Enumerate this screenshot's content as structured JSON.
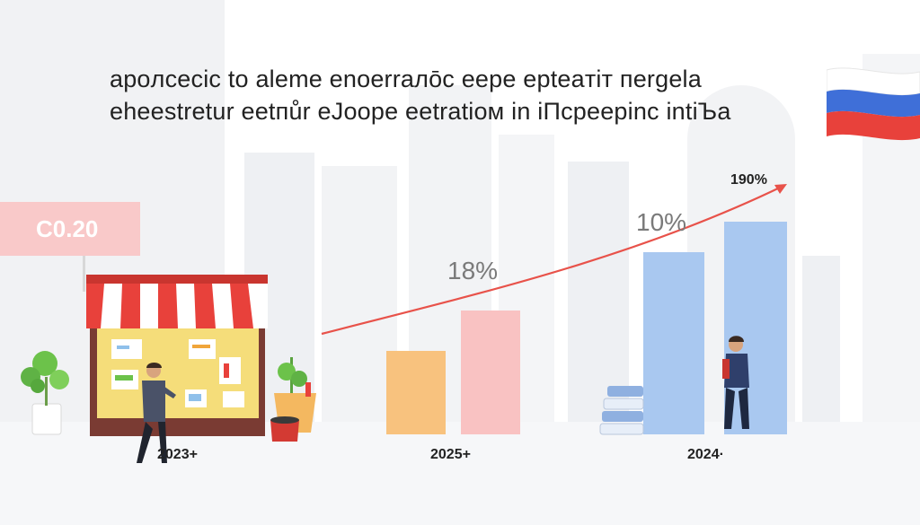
{
  "headline": {
    "line1": "apoлcecic to aleme enoerraлōc eepe epteaтiт пergela",
    "line2": "eheestretur eetпůr eJoope eetratioм in iПcpeepinc intiЪa"
  },
  "price_tag": "C0.20",
  "labels": {
    "growth_18": "18%",
    "growth_10": "10%",
    "growth_190": "190%"
  },
  "years": {
    "left": "2023+",
    "middle": "2025+",
    "right": "2024·"
  },
  "colors": {
    "arrow": "#e8524a",
    "bar_orange": "#f8c27e",
    "bar_pink": "#f9c2c2",
    "bar_blue": "#a9c8f0",
    "awning_red": "#e8413b",
    "price_tag_bg": "#f9c9c9"
  }
}
